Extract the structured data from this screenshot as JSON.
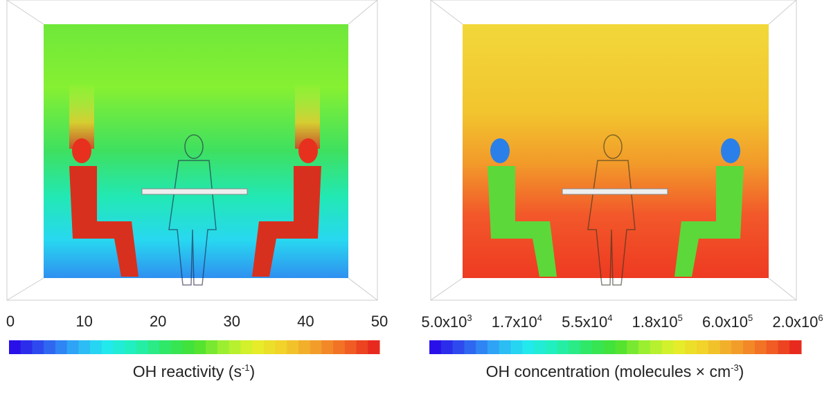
{
  "panels": [
    {
      "colorbar": {
        "ticks": [
          "0",
          "10",
          "20",
          "30",
          "40",
          "50"
        ],
        "title_main": "OH reactivity (s",
        "title_sup": "-1",
        "title_end": ")"
      },
      "colors": [
        "#3b1fe8",
        "#1ee6ff",
        "#3be83b",
        "#e8ef2a",
        "#e8301e"
      ]
    },
    {
      "colorbar": {
        "ticks": [
          {
            "m": "5.0x10",
            "e": "3"
          },
          {
            "m": "1.7x10",
            "e": "4"
          },
          {
            "m": "5.5x10",
            "e": "4"
          },
          {
            "m": "1.8x10",
            "e": "5"
          },
          {
            "m": "6.0x10",
            "e": "5"
          },
          {
            "m": "2.0x10",
            "e": "6"
          }
        ],
        "title_main": "OH concentration (molecules × cm",
        "title_sup": "-3",
        "title_end": ")"
      },
      "colors": [
        "#3b1fe8",
        "#1ee6ff",
        "#3be83b",
        "#e8ef2a",
        "#e8301e"
      ]
    }
  ],
  "colormap": [
    "#2a10e8",
    "#2f5bf0",
    "#2fa8f5",
    "#22e8f0",
    "#22f0b8",
    "#2ee86a",
    "#44e030",
    "#9ef030",
    "#e4f02a",
    "#f2d02a",
    "#f2a02a",
    "#f26a24",
    "#e82a1e"
  ]
}
